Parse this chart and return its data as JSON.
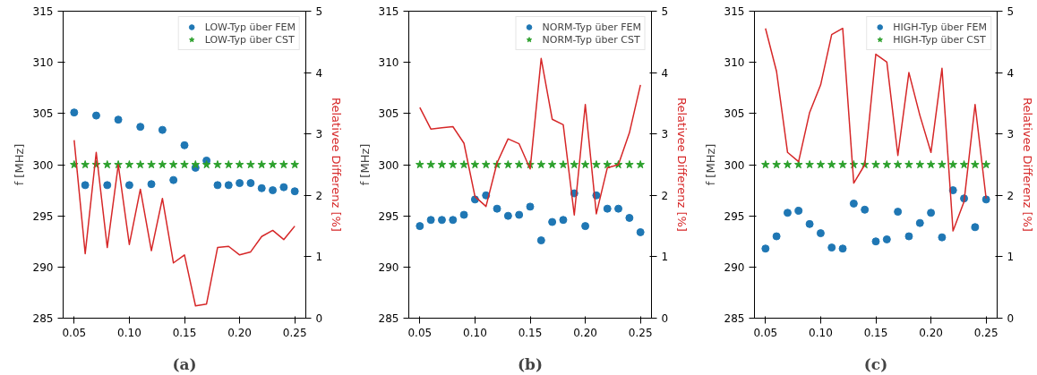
{
  "chart_data": [
    {
      "type": "scatter",
      "xlabel": "(a)",
      "ylabel": "f [MHz]",
      "y2label": "Relativee Differenz [%]",
      "x": [
        0.05,
        0.06,
        0.07,
        0.08,
        0.09,
        0.1,
        0.11,
        0.12,
        0.13,
        0.14,
        0.15,
        0.16,
        0.17,
        0.18,
        0.19,
        0.2,
        0.21,
        0.22,
        0.23,
        0.24,
        0.25
      ],
      "xlim": [
        0.04,
        0.26
      ],
      "xticks": [
        {
          "value": 0.05,
          "label": "0.05"
        },
        {
          "value": 0.1,
          "label": "0.10"
        },
        {
          "value": 0.15,
          "label": "0.15"
        },
        {
          "value": 0.2,
          "label": "0.20"
        },
        {
          "value": 0.25,
          "label": "0.25"
        }
      ],
      "ylim": [
        285,
        315
      ],
      "yticks": [
        285,
        290,
        295,
        300,
        305,
        310,
        315
      ],
      "y2lim": [
        0,
        5
      ],
      "y2ticks": [
        0,
        1,
        2,
        3,
        4,
        5
      ],
      "legend": "top right",
      "grid": false,
      "series": [
        {
          "name": "LOW-Typ über FEM",
          "color": "#1f77b4",
          "marker": "circle",
          "values": [
            305.1,
            298.0,
            304.8,
            298.0,
            304.4,
            298.0,
            303.7,
            298.1,
            303.4,
            298.5,
            301.9,
            299.7,
            300.4,
            298.0,
            298.0,
            298.2,
            298.2,
            297.7,
            297.5,
            297.8,
            297.4
          ]
        },
        {
          "name": "LOW-Typ über CST",
          "color": "#2ca02c",
          "marker": "star",
          "values": [
            300,
            300,
            300,
            300,
            300,
            300,
            300,
            300,
            300,
            300,
            300,
            300,
            300,
            300,
            300,
            300,
            300,
            300,
            300,
            300,
            300
          ]
        },
        {
          "type": "line",
          "axis": "y2",
          "color": "#d62728",
          "values": [
            2.9,
            1.05,
            2.7,
            1.15,
            2.5,
            1.2,
            2.1,
            1.1,
            1.95,
            0.9,
            1.03,
            0.2,
            0.23,
            1.15,
            1.17,
            1.03,
            1.08,
            1.33,
            1.43,
            1.28,
            1.5
          ]
        }
      ]
    },
    {
      "type": "scatter",
      "xlabel": "(b)",
      "ylabel": "f [MHz]",
      "y2label": "Relativee Differenz [%]",
      "x": [
        0.05,
        0.06,
        0.07,
        0.08,
        0.09,
        0.1,
        0.11,
        0.12,
        0.13,
        0.14,
        0.15,
        0.16,
        0.17,
        0.18,
        0.19,
        0.2,
        0.21,
        0.22,
        0.23,
        0.24,
        0.25
      ],
      "xlim": [
        0.04,
        0.26
      ],
      "xticks": [
        {
          "value": 0.05,
          "label": "0.05"
        },
        {
          "value": 0.1,
          "label": "0.10"
        },
        {
          "value": 0.15,
          "label": "0.15"
        },
        {
          "value": 0.2,
          "label": "0.20"
        },
        {
          "value": 0.25,
          "label": "0.25"
        }
      ],
      "ylim": [
        285,
        315
      ],
      "yticks": [
        285,
        290,
        295,
        300,
        305,
        310,
        315
      ],
      "y2lim": [
        0,
        5
      ],
      "y2ticks": [
        0,
        1,
        2,
        3,
        4,
        5
      ],
      "legend": "top right",
      "grid": false,
      "series": [
        {
          "name": "NORM-Typ über FEM",
          "color": "#1f77b4",
          "marker": "circle",
          "values": [
            294.0,
            294.6,
            294.6,
            294.6,
            295.1,
            296.6,
            297.0,
            295.7,
            295.0,
            295.1,
            295.9,
            292.6,
            294.4,
            294.6,
            297.2,
            294.0,
            297.0,
            295.7,
            295.7,
            294.8,
            293.4
          ]
        },
        {
          "name": "NORM-Typ über CST",
          "color": "#2ca02c",
          "marker": "star",
          "values": [
            300,
            300,
            300,
            300,
            300,
            300,
            300,
            300,
            300,
            300,
            300,
            300,
            300,
            300,
            300,
            300,
            300,
            300,
            300,
            300,
            300
          ]
        },
        {
          "type": "line",
          "axis": "y2",
          "color": "#d62728",
          "values": [
            3.43,
            3.08,
            3.1,
            3.12,
            2.85,
            1.98,
            1.82,
            2.53,
            2.92,
            2.84,
            2.43,
            4.23,
            3.24,
            3.15,
            1.68,
            3.48,
            1.7,
            2.45,
            2.5,
            3.02,
            3.8
          ]
        }
      ]
    },
    {
      "type": "scatter",
      "xlabel": "(c)",
      "ylabel": "f [MHz]",
      "y2label": "Relativee Differenz [%]",
      "x": [
        0.05,
        0.06,
        0.07,
        0.08,
        0.09,
        0.1,
        0.11,
        0.12,
        0.13,
        0.14,
        0.15,
        0.16,
        0.17,
        0.18,
        0.19,
        0.2,
        0.21,
        0.22,
        0.23,
        0.24,
        0.25
      ],
      "xlim": [
        0.04,
        0.26
      ],
      "xticks": [
        {
          "value": 0.05,
          "label": "0.05"
        },
        {
          "value": 0.1,
          "label": "0.10"
        },
        {
          "value": 0.15,
          "label": "0.15"
        },
        {
          "value": 0.2,
          "label": "0.20"
        },
        {
          "value": 0.25,
          "label": "0.25"
        }
      ],
      "ylim": [
        285,
        315
      ],
      "yticks": [
        285,
        290,
        295,
        300,
        305,
        310,
        315
      ],
      "y2lim": [
        0,
        5
      ],
      "y2ticks": [
        0,
        1,
        2,
        3,
        4,
        5
      ],
      "legend": "top right",
      "grid": false,
      "series": [
        {
          "name": "HIGH-Typ über FEM",
          "color": "#1f77b4",
          "marker": "circle",
          "values": [
            291.8,
            293.0,
            295.3,
            295.5,
            294.2,
            293.3,
            291.9,
            291.8,
            296.2,
            295.6,
            292.5,
            292.7,
            295.4,
            293.0,
            294.3,
            295.3,
            292.9,
            297.5,
            296.7,
            293.9,
            296.6
          ]
        },
        {
          "name": "HIGH-Typ über CST",
          "color": "#2ca02c",
          "marker": "star",
          "values": [
            300,
            300,
            300,
            300,
            300,
            300,
            300,
            300,
            300,
            300,
            300,
            300,
            300,
            300,
            300,
            300,
            300,
            300,
            300,
            300,
            300
          ]
        },
        {
          "type": "line",
          "axis": "y2",
          "color": "#d62728",
          "values": [
            4.72,
            4.02,
            2.7,
            2.55,
            3.35,
            3.8,
            4.62,
            4.72,
            2.2,
            2.5,
            4.3,
            4.17,
            2.65,
            4.0,
            3.3,
            2.7,
            4.07,
            1.42,
            1.9,
            3.48,
            1.95
          ]
        }
      ]
    }
  ]
}
